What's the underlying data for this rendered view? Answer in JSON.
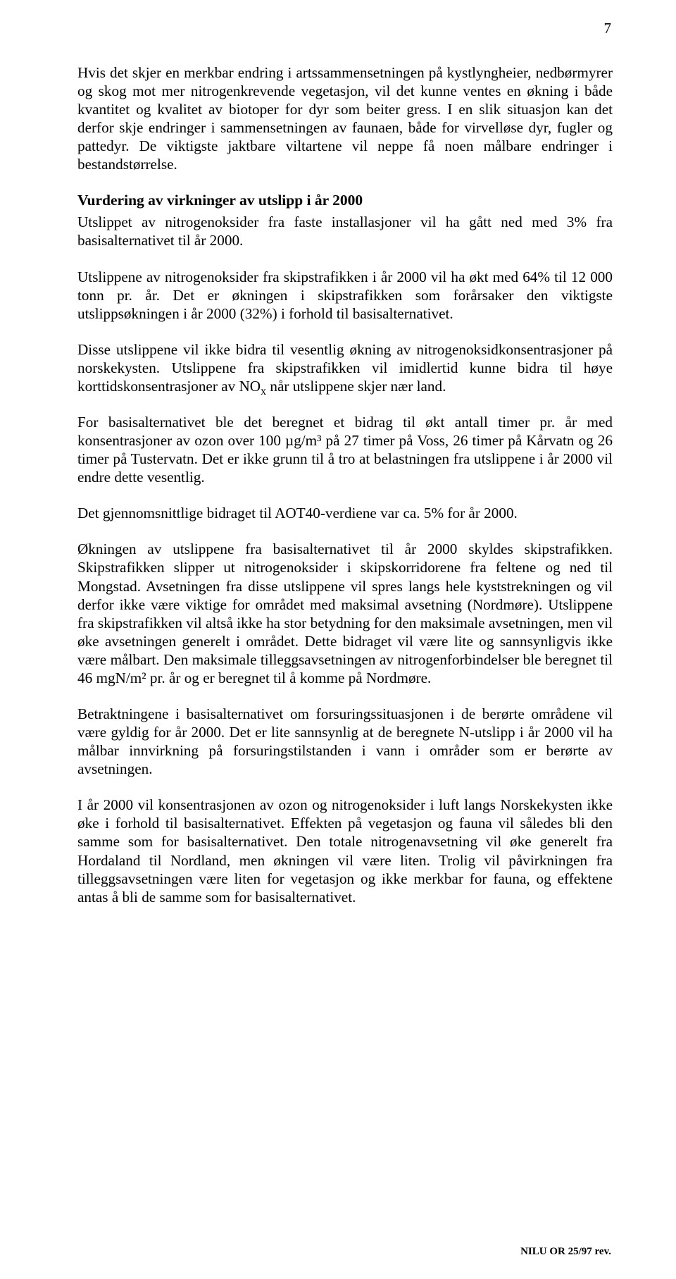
{
  "page_number": "7",
  "paragraphs": {
    "p1": "Hvis det skjer en merkbar endring i artssammensetningen på kystlyngheier, nedbørmyrer og skog mot mer nitrogenkrevende vegetasjon, vil det kunne ventes en økning i både kvantitet og kvalitet av biotoper for dyr som beiter gress. I en slik situasjon kan det derfor skje endringer i sammensetningen av faunaen, både for virvelløse dyr, fugler og pattedyr. De viktigste jaktbare viltartene vil neppe få noen målbare endringer i bestandstørrelse.",
    "heading": "Vurdering av virkninger av utslipp i år 2000",
    "p2": "Utslippet av nitrogenoksider fra faste installasjoner vil ha gått ned med 3% fra basisalternativet til år 2000.",
    "p3": "Utslippene av nitrogenoksider fra skipstrafikken i år 2000 vil ha økt med 64% til 12 000 tonn pr. år. Det er økningen i skipstrafikken som forårsaker den viktigste utslippsøkningen i år 2000 (32%) i forhold til basisalternativet.",
    "p4_a": "Disse utslippene vil ikke bidra til vesentlig økning av nitrogenoksidkonsen­trasjoner på norskekysten. Utslippene fra skipstrafikken vil imidlertid kunne bidra til høye korttidskonsentrasjoner av NO",
    "p4_sub": "x",
    "p4_b": " når utslippene skjer nær land.",
    "p5": "For basisalternativet ble det beregnet et bidrag til økt antall timer pr. år med konsentrasjoner av ozon over 100 µg/m³ på 27 timer på Voss, 26 timer på Kårvatn og 26 timer på Tustervatn. Det er ikke grunn til å  tro at belastningen fra utslippene i år 2000 vil endre dette vesentlig.",
    "p6": "Det gjennomsnittlige bidraget til AOT40-verdiene var ca. 5% for år 2000.",
    "p7": "Økningen av utslippene fra basisalternativet til år 2000 skyldes skipstrafikken. Skipstrafikken slipper ut nitrogenoksider i skipskorridorene fra feltene og ned til Mongstad. Avsetningen fra disse utslippene vil spres langs hele kyststrekningen og vil derfor ikke være viktige for området med maksimal avsetning (Nordmøre). Utslippene fra skipstrafikken vil altså ikke ha stor betydning for den maksimale avsetningen, men vil øke avsetningen generelt i området. Dette bidraget vil være lite og sannsynligvis ikke være målbart. Den maksimale tilleggsavsetningen av nitrogenforbindelser ble beregnet til 46 mgN/m² pr. år og er beregnet til å komme på Nordmøre.",
    "p8": "Betraktningene i basisalternativet om forsuringssituasjonen i de berørte områdene vil være gyldig for år 2000. Det er lite sannsynlig at de beregnete N-utslipp i år 2000 vil ha målbar innvirkning på forsuringstilstanden i vann i områder som er berørte av avsetningen.",
    "p9": "I år 2000 vil konsentrasjonen av ozon og nitrogenoksider i luft langs Norskekysten ikke øke i forhold til basisalternativet. Effekten på vegetasjon og fauna vil således bli den samme som for basisalternativet. Den totale nitrogenavsetning vil øke generelt fra Hordaland til Nordland, men økningen vil være liten. Trolig vil påvirkningen fra tilleggsavsetningen være liten for vegetasjon og ikke merkbar for fauna, og effektene antas å bli de samme som for basisalternativet."
  },
  "footer": "NILU OR 25/97 rev."
}
